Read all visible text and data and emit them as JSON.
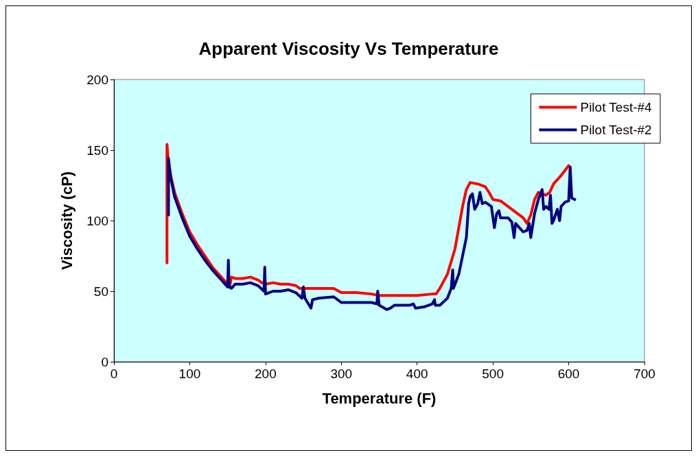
{
  "chart_data": {
    "type": "line",
    "title": "Apparent Viscosity Vs Temperature",
    "xlabel": "Temperature (F)",
    "ylabel": "Viscosity (cP)",
    "xlim": [
      0,
      700
    ],
    "xticks": [
      0,
      100,
      200,
      300,
      400,
      500,
      600,
      700
    ],
    "ylim": [
      0,
      200
    ],
    "yticks": [
      0,
      50,
      100,
      150,
      200
    ],
    "grid": false,
    "legend": "top right",
    "marker": "none",
    "line_style": "solid",
    "series": [
      {
        "name": "Pilot Test-#4",
        "color": "#ff0000",
        "x": [
          70,
          70,
          72,
          75,
          80,
          90,
          100,
          110,
          120,
          130,
          140,
          150,
          153,
          155,
          160,
          170,
          180,
          190,
          195,
          200,
          210,
          220,
          230,
          240,
          245,
          260,
          290,
          300,
          320,
          340,
          350,
          400,
          420,
          425,
          430,
          440,
          450,
          455,
          460,
          465,
          470,
          480,
          490,
          495,
          500,
          510,
          520,
          530,
          540,
          545,
          550,
          555,
          560,
          570,
          575,
          580,
          590,
          600
        ],
        "values": [
          70,
          154,
          140,
          132,
          120,
          105,
          92,
          83,
          75,
          67,
          61,
          55,
          54,
          60,
          59,
          59,
          60,
          58,
          56,
          55,
          56,
          55,
          55,
          54,
          52,
          52,
          52,
          49,
          49,
          48,
          47,
          47,
          48,
          48,
          52,
          62,
          80,
          95,
          110,
          122,
          127,
          126,
          124,
          120,
          115,
          114,
          110,
          106,
          102,
          98,
          104,
          115,
          120,
          118,
          120,
          126,
          132,
          139
        ]
      },
      {
        "name": "Pilot Test-#2",
        "color": "#000080",
        "x": [
          72,
          72,
          75,
          80,
          90,
          100,
          110,
          120,
          130,
          140,
          150,
          151,
          152,
          155,
          160,
          170,
          180,
          190,
          198,
          199,
          200,
          210,
          220,
          230,
          240,
          248,
          250,
          252,
          260,
          262,
          270,
          290,
          300,
          320,
          340,
          347,
          348,
          350,
          360,
          365,
          370,
          390,
          395,
          398,
          410,
          420,
          423,
          424,
          430,
          440,
          445,
          447,
          448,
          455,
          465,
          468,
          470,
          473,
          476,
          480,
          483,
          486,
          490,
          498,
          502,
          505,
          508,
          510,
          520,
          525,
          528,
          530,
          535,
          540,
          545,
          548,
          550,
          555,
          560,
          565,
          567,
          570,
          574,
          576,
          578,
          580,
          585,
          588,
          590,
          595,
          600,
          602,
          604,
          608
        ],
        "values": [
          104,
          144,
          130,
          117,
          102,
          89,
          80,
          72,
          65,
          59,
          53,
          72,
          53,
          52,
          55,
          55,
          56,
          54,
          50,
          67,
          48,
          50,
          50,
          51,
          49,
          45,
          53,
          45,
          38,
          44,
          45,
          46,
          42,
          42,
          42,
          41,
          50,
          40,
          37,
          38,
          40,
          40,
          41,
          38,
          39,
          41,
          44,
          40,
          40,
          45,
          52,
          65,
          52,
          62,
          88,
          112,
          117,
          119,
          108,
          112,
          120,
          112,
          113,
          110,
          95,
          105,
          107,
          102,
          102,
          99,
          88,
          98,
          95,
          92,
          93,
          98,
          88,
          105,
          115,
          122,
          108,
          110,
          108,
          118,
          98,
          100,
          108,
          100,
          110,
          113,
          114,
          138,
          116,
          115
        ]
      }
    ]
  }
}
